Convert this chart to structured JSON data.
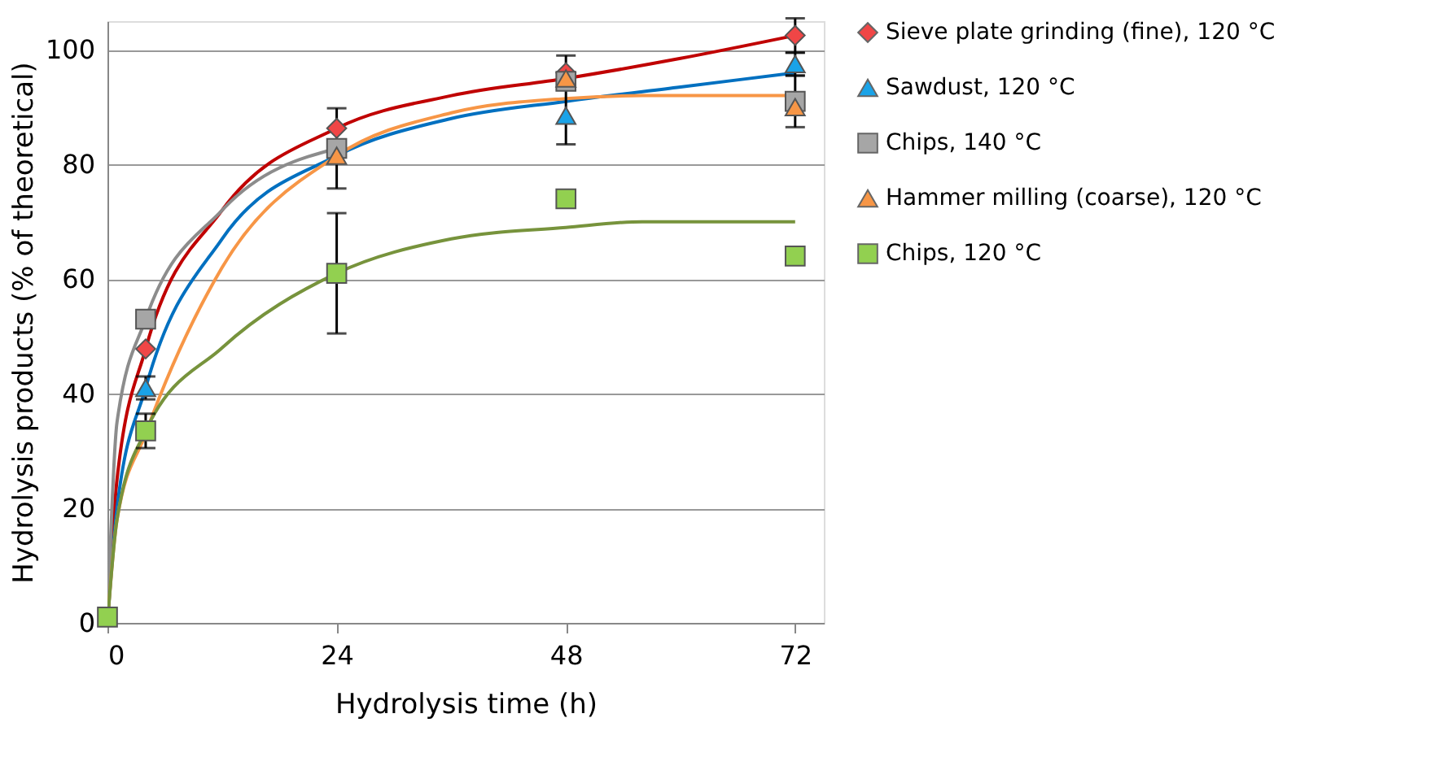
{
  "chart_data": {
    "type": "scatter",
    "xlabel": "Hydrolysis time (h)",
    "ylabel": "Hydrolysis products (% of theoretical)",
    "x": [
      0,
      4,
      24,
      48,
      72
    ],
    "xlim": [
      0,
      75
    ],
    "xticks": [
      0,
      24,
      48,
      72
    ],
    "ylim": [
      0,
      105
    ],
    "yticks": [
      0,
      20,
      40,
      60,
      80,
      100
    ],
    "grid": "y",
    "legend": "right",
    "series": [
      {
        "type": "line",
        "color": "#c00000",
        "x": [
          0,
          1,
          4,
          12,
          24,
          36,
          48,
          60,
          72
        ],
        "values": [
          0,
          25,
          47.8,
          72,
          86.3,
          92,
          95,
          98.5,
          102.5
        ]
      },
      {
        "type": "line",
        "color": "#0070c0",
        "x": [
          0,
          1,
          4,
          12,
          24,
          36,
          48,
          60,
          72
        ],
        "values": [
          0,
          20,
          41,
          67,
          81.5,
          88,
          91,
          93.5,
          96
        ]
      },
      {
        "type": "line",
        "color": "#8c8c8c",
        "x": [
          0,
          1,
          4,
          12,
          24
        ],
        "values": [
          0,
          35,
          53,
          72,
          82.8
        ]
      },
      {
        "type": "line",
        "color": "#f79646",
        "x": [
          0,
          1,
          4,
          12,
          24,
          36,
          48,
          56,
          72
        ],
        "values": [
          0,
          18,
          33,
          62,
          81.5,
          89,
          91.5,
          92,
          92
        ]
      },
      {
        "type": "line",
        "color": "#77933c",
        "x": [
          0,
          1,
          4,
          12,
          24,
          36,
          48,
          56,
          72
        ],
        "values": [
          0,
          18,
          33.5,
          48,
          61,
          67,
          69,
          70,
          70
        ]
      },
      {
        "name": "Sieve plate grinding (fine), 120 °C",
        "color": "#f04646",
        "marker": "diamond",
        "values": [
          null,
          47.8,
          86.3,
          96,
          102.5
        ],
        "errors": [
          null,
          null,
          null,
          3,
          3
        ]
      },
      {
        "name": "Sawdust, 120 °C",
        "color": "#1aa3e8",
        "marker": "triangle",
        "values": [
          null,
          41,
          null,
          88.5,
          97.5
        ],
        "errors": [
          null,
          2,
          null,
          5,
          2
        ]
      },
      {
        "name": "Chips, 140 °C",
        "color": "#a6a6a6",
        "marker": "square",
        "values": [
          null,
          53,
          82.8,
          94.5,
          91
        ],
        "errors": [
          null,
          null,
          7,
          null,
          4.5
        ]
      },
      {
        "name": "Hammer milling (coarse), 120 °C",
        "color": "#f79646",
        "marker": "triangle",
        "values": [
          null,
          null,
          81.5,
          95,
          90
        ],
        "errors": [
          null,
          null,
          null,
          null,
          null
        ]
      },
      {
        "name": "Chips, 120 °C",
        "color": "#92d050",
        "marker": "square",
        "values": [
          1,
          33.5,
          61,
          74,
          64
        ],
        "errors": [
          null,
          3,
          10.5,
          null,
          1.5
        ]
      }
    ]
  }
}
